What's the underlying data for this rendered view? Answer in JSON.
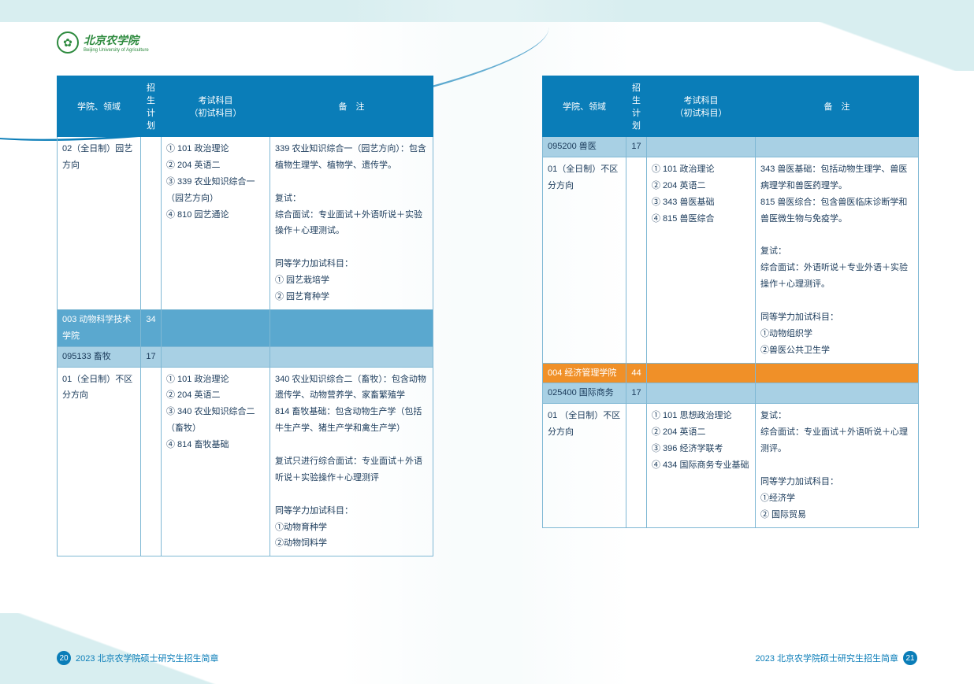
{
  "logo": {
    "name": "北京农学院",
    "sub": "Beijing University of Agriculture"
  },
  "headers": {
    "dept": "学院、领域",
    "plan": "招生\n计划",
    "exam": "考试科目\n（初试科目）",
    "note": "备　注"
  },
  "left": {
    "rows": [
      {
        "type": "data",
        "dept": "02（全日制）园艺方向",
        "plan": "",
        "exam": "① 101 政治理论\n② 204 英语二\n③ 339 农业知识综合一（园艺方向）\n④ 810 园艺通论",
        "note": "339 农业知识综合一（园艺方向）：包含植物生理学、植物学、遗传学。\n\n复试：\n综合面试：专业面试＋外语听说＋实验操作＋心理测试。\n\n同等学力加试科目：\n① 园艺栽培学\n② 园艺育种学"
      },
      {
        "type": "dept",
        "dept": "003 动物科学技术学院",
        "plan": "34"
      },
      {
        "type": "major",
        "dept": "095133 畜牧",
        "plan": "17"
      },
      {
        "type": "data",
        "dept": "01（全日制）不区分方向",
        "plan": "",
        "exam": "① 101 政治理论\n② 204 英语二\n③ 340 农业知识综合二（畜牧）\n④ 814 畜牧基础",
        "note": "340 农业知识综合二（畜牧）：包含动物遗传学、动物营养学、家畜繁殖学\n814 畜牧基础：包含动物生产学（包括牛生产学、猪生产学和禽生产学）\n\n复试只进行综合面试：专业面试＋外语听说＋实验操作＋心理测评\n\n同等学力加试科目：\n①动物育种学\n②动物饲料学"
      }
    ]
  },
  "right": {
    "rows": [
      {
        "type": "major",
        "dept": "095200 兽医",
        "plan": "17"
      },
      {
        "type": "data",
        "dept": "01（全日制）不区分方向",
        "plan": "",
        "exam": "① 101 政治理论\n② 204 英语二\n③ 343 兽医基础\n④ 815 兽医综合",
        "note": "343 兽医基础：包括动物生理学、兽医病理学和兽医药理学。\n 815 兽医综合：包含兽医临床诊断学和兽医微生物与免疫学。\n\n复试：\n综合面试：外语听说＋专业外语＋实验操作＋心理测评。\n\n同等学力加试科目：\n①动物组织学\n②兽医公共卫生学"
      },
      {
        "type": "orange",
        "dept": "004 经济管理学院",
        "plan": "44"
      },
      {
        "type": "major",
        "dept": "025400 国际商务",
        "plan": "17"
      },
      {
        "type": "data",
        "dept": "01 （全日制）不区分方向",
        "plan": "",
        "exam": "① 101 思想政治理论\n② 204 英语二\n③ 396 经济学联考\n④ 434 国际商务专业基础",
        "note": "复试：\n综合面试：专业面试＋外语听说＋心理测评。\n\n同等学力加试科目：\n①经济学\n② 国际贸易"
      }
    ]
  },
  "footer": {
    "text": "2023 北京农学院硕士研究生招生简章",
    "page_left": "20",
    "page_right": "21"
  }
}
